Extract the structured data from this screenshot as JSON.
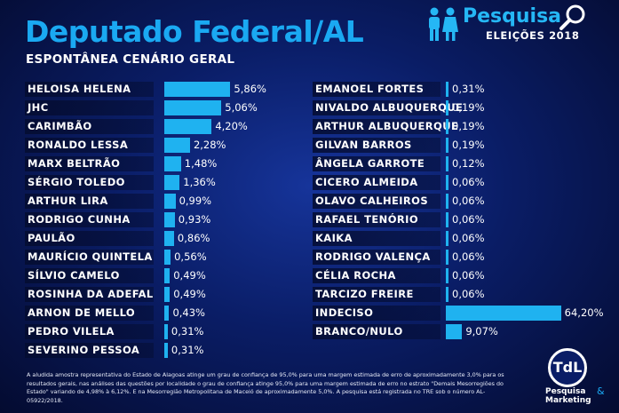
{
  "chart_data": {
    "type": "bar",
    "orientation": "horizontal",
    "title": "Deputado Federal/AL",
    "subtitle": "ESPONTÂNEA CENÁRIO GERAL",
    "bar_color": "#1fb2f0",
    "groups": [
      {
        "categories": [
          "HELOISA HELENA",
          "JHC",
          "CARIMBÃO",
          "RONALDO LESSA",
          "MARX BELTRÃO",
          "SÉRGIO TOLEDO",
          "ARTHUR LIRA",
          "RODRIGO CUNHA",
          "PAULÃO",
          "MAURÍCIO QUINTELA",
          "SÍLVIO CAMELO",
          "ROSINHA DA ADEFAL",
          "ARNON DE MELLO",
          "PEDRO VILELA",
          "SEVERINO PESSOA"
        ],
        "values": [
          5.86,
          5.06,
          4.2,
          2.28,
          1.48,
          1.36,
          0.99,
          0.93,
          0.86,
          0.56,
          0.49,
          0.49,
          0.43,
          0.31,
          0.31
        ],
        "labels": [
          "5,86%",
          "5,06%",
          "4,20%",
          "2,28%",
          "1,48%",
          "1,36%",
          "0,99%",
          "0,93%",
          "0,86%",
          "0,56%",
          "0,49%",
          "0,49%",
          "0,43%",
          "0,31%",
          "0,31%"
        ]
      },
      {
        "categories": [
          "EMANOEL FORTES",
          "NIVALDO ALBUQUERQUE",
          "ARTHUR ALBUQUERQUE",
          "GILVAN BARROS",
          "ÂNGELA GARROTE",
          "CICERO ALMEIDA",
          "OLAVO CALHEIROS",
          "RAFAEL TENÓRIO",
          "KAIKA",
          "RODRIGO VALENÇA",
          "CÉLIA ROCHA",
          "TARCIZO FREIRE",
          "INDECISO",
          "BRANCO/NULO"
        ],
        "values": [
          0.31,
          0.19,
          0.19,
          0.19,
          0.12,
          0.06,
          0.06,
          0.06,
          0.06,
          0.06,
          0.06,
          0.06,
          64.2,
          9.07
        ],
        "labels": [
          "0,31%",
          "0,19%",
          "0,19%",
          "0,19%",
          "0,12%",
          "0,06%",
          "0,06%",
          "0,06%",
          "0,06%",
          "0,06%",
          "0,06%",
          "0,06%",
          "64,20%",
          "9,07%"
        ]
      }
    ]
  },
  "brand": {
    "word": "Pesquisa",
    "subtitle": "ELEIÇÕES 2018",
    "people_icon": "people-icon",
    "magnifier_icon": "magnifier-icon"
  },
  "footnote": "A aludida amostra representativa do Estado de Alagoas atinge um grau de confiança de 95,0% para uma margem estimada de erro de aproximadamente 3,0% para os resultados gerais, nas análises das questões por localidade o grau de confiança atinge 95,0% para uma margem estimada de erro no estrato \"Demais Mesorregiões do Estado\" variando de 4,98% à 6,12%. E na Mesorregião Metropolitana de Maceió de aproximadamente 5,0%. A pesquisa está registrada no TRE sob o número AL-05922/2018.",
  "logo": {
    "initials": "TdL",
    "line1": "Pesquisa",
    "amp": "&",
    "line2": "Marketing"
  }
}
